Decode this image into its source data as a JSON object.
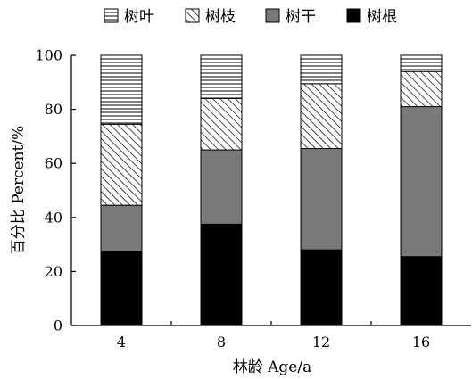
{
  "chart_data": {
    "type": "bar",
    "stacked": true,
    "categories": [
      "4",
      "8",
      "12",
      "16"
    ],
    "series": [
      {
        "name": "树根",
        "pattern": "solid-black",
        "values": [
          27.5,
          37.5,
          28,
          25.5
        ]
      },
      {
        "name": "树干",
        "pattern": "solid-gray",
        "values": [
          17,
          27.5,
          37.5,
          55.5
        ]
      },
      {
        "name": "树枝",
        "pattern": "diagonal-hatch",
        "values": [
          30,
          19,
          24,
          13
        ]
      },
      {
        "name": "树叶",
        "pattern": "horizontal-lines",
        "values": [
          25.5,
          16,
          10.5,
          6
        ]
      }
    ],
    "legend_order": [
      "树叶",
      "树枝",
      "树干",
      "树根"
    ],
    "legend_position": "top",
    "xlabel": "林龄 Age/a",
    "ylabel": "百分比 Percent/%",
    "ylim": [
      0,
      100
    ],
    "yticks": [
      "0",
      "20",
      "40",
      "60",
      "80",
      "100"
    ],
    "grid": false,
    "colors": {
      "solid-black": "#000000",
      "solid-gray": "#7a7a7a",
      "pattern-ink": "#000000",
      "background": "#ffffff"
    }
  }
}
